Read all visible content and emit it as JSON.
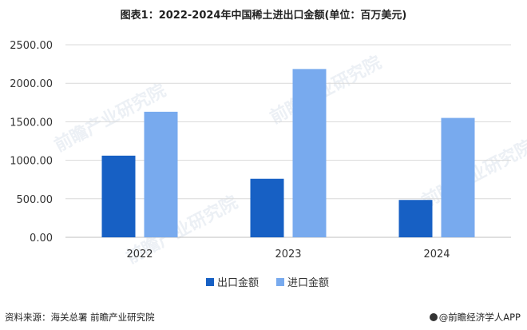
{
  "title": "图表1：2022-2024年中国稀土进出口金额(单位：百万美元)",
  "footer": {
    "source": "资料来源：海关总署 前瞻产业研究院",
    "brand": "@前瞻经济学人APP"
  },
  "watermark": "前瞻产业研究院",
  "colors": {
    "export": "#1760c4",
    "import": "#78aaee",
    "grid": "#d9d9d9"
  },
  "chart_data": {
    "type": "bar",
    "title": "图表1：2022-2024年中国稀土进出口金额(单位：百万美元)",
    "categories": [
      "2022",
      "2023",
      "2024"
    ],
    "series": [
      {
        "name": "出口金额",
        "values": [
          1060,
          760,
          485
        ],
        "color": "#1760c4"
      },
      {
        "name": "进口金额",
        "values": [
          1630,
          2185,
          1550
        ],
        "color": "#78aaee"
      }
    ],
    "yticks": [
      "0.00",
      "500.00",
      "1000.00",
      "1500.00",
      "2000.00",
      "2500.00"
    ],
    "ylim": [
      0,
      2500
    ],
    "grid": true,
    "legend": "bottom"
  }
}
